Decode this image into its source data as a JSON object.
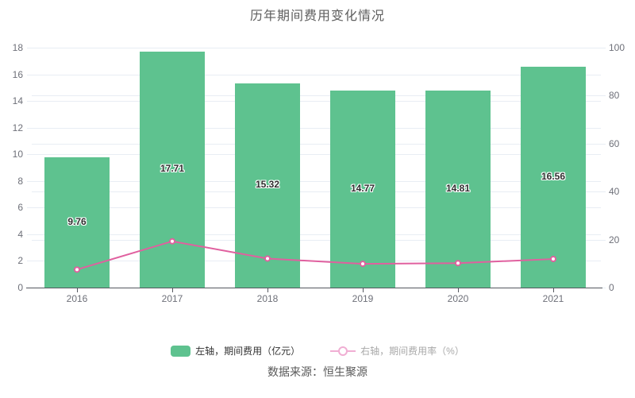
{
  "title": "历年期间费用变化情况",
  "source_note": "数据来源：恒生聚源",
  "legend": {
    "bar": {
      "label": "左轴，期间费用（亿元）"
    },
    "line": {
      "label": "右轴，期间费用率（%）"
    }
  },
  "colors": {
    "bar": "#5ec28f",
    "line": "#e0609f",
    "legend_line": "#f0aed3",
    "grid": "#e8edf4",
    "axis_line": "#54585f",
    "axis_label": "#6e7079",
    "bar_label": "#2f2f2f"
  },
  "chart_data": {
    "type": "bar+line",
    "title": "历年期间费用变化情况",
    "categories": [
      "2016",
      "2017",
      "2018",
      "2019",
      "2020",
      "2021"
    ],
    "series": [
      {
        "name": "左轴，期间费用（亿元）",
        "type": "bar",
        "y_axis": "left",
        "unit": "亿元",
        "values": [
          9.76,
          17.71,
          15.32,
          14.77,
          14.81,
          16.56
        ],
        "data_labels": [
          "9.76",
          "17.71",
          "15.32",
          "14.77",
          "14.81",
          "16.56"
        ]
      },
      {
        "name": "右轴，期间费用率（%）",
        "type": "line",
        "y_axis": "right",
        "unit": "%",
        "values": [
          7.5,
          19.3,
          12.1,
          9.9,
          10.2,
          11.9
        ]
      }
    ],
    "left_axis": {
      "min": 0,
      "max": 18,
      "step": 2
    },
    "right_axis": {
      "min": 0,
      "max": 100,
      "step": 20
    },
    "grid": true,
    "legend_position": "bottom",
    "source_note": "数据来源：恒生聚源"
  }
}
